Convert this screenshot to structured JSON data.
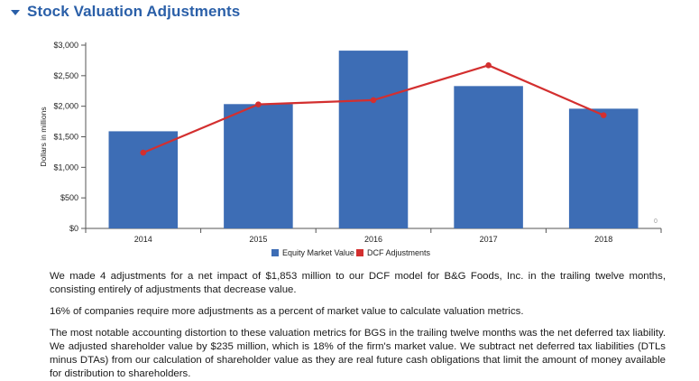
{
  "section": {
    "title": "Stock Valuation Adjustments"
  },
  "chart_data": {
    "type": "bar",
    "categories": [
      "2014",
      "2015",
      "2016",
      "2017",
      "2018"
    ],
    "series": [
      {
        "name": "Equity Market Value",
        "type": "bar",
        "color": "#3d6db5",
        "values": [
          1590,
          2035,
          2910,
          2330,
          1960
        ]
      },
      {
        "name": "DCF Adjustments",
        "type": "line",
        "color": "#d32f2f",
        "values": [
          1240,
          2030,
          2100,
          2670,
          1853
        ]
      }
    ],
    "ylabel": "Dollars in millions",
    "ylim": [
      0,
      3000
    ],
    "yticks": [
      0,
      500,
      1000,
      1500,
      2000,
      2500,
      3000
    ],
    "ytick_labels": [
      "$0",
      "$500",
      "$1,000",
      "$1,500",
      "$2,000",
      "$2,500",
      "$3,000"
    ],
    "legend_position": "bottom-center",
    "grid": false,
    "corner_mark": "0"
  },
  "paragraphs": [
    "We made 4 adjustments for a net impact of $1,853 million to our DCF model for B&G Foods, Inc. in the trailing twelve months, consisting entirely of adjustments that decrease value.",
    "16% of companies require more adjustments as a percent of market value to calculate valuation metrics.",
    "The most notable accounting distortion to these valuation metrics for BGS in the trailing twelve months was the net deferred tax liability. We adjusted shareholder value by $235 million, which is 18% of the firm's market value. We subtract net deferred tax liabilities (DTLs minus DTAs) from our calculation of shareholder value as they are real future cash obligations that limit the amount of money available for distribution to shareholders."
  ]
}
